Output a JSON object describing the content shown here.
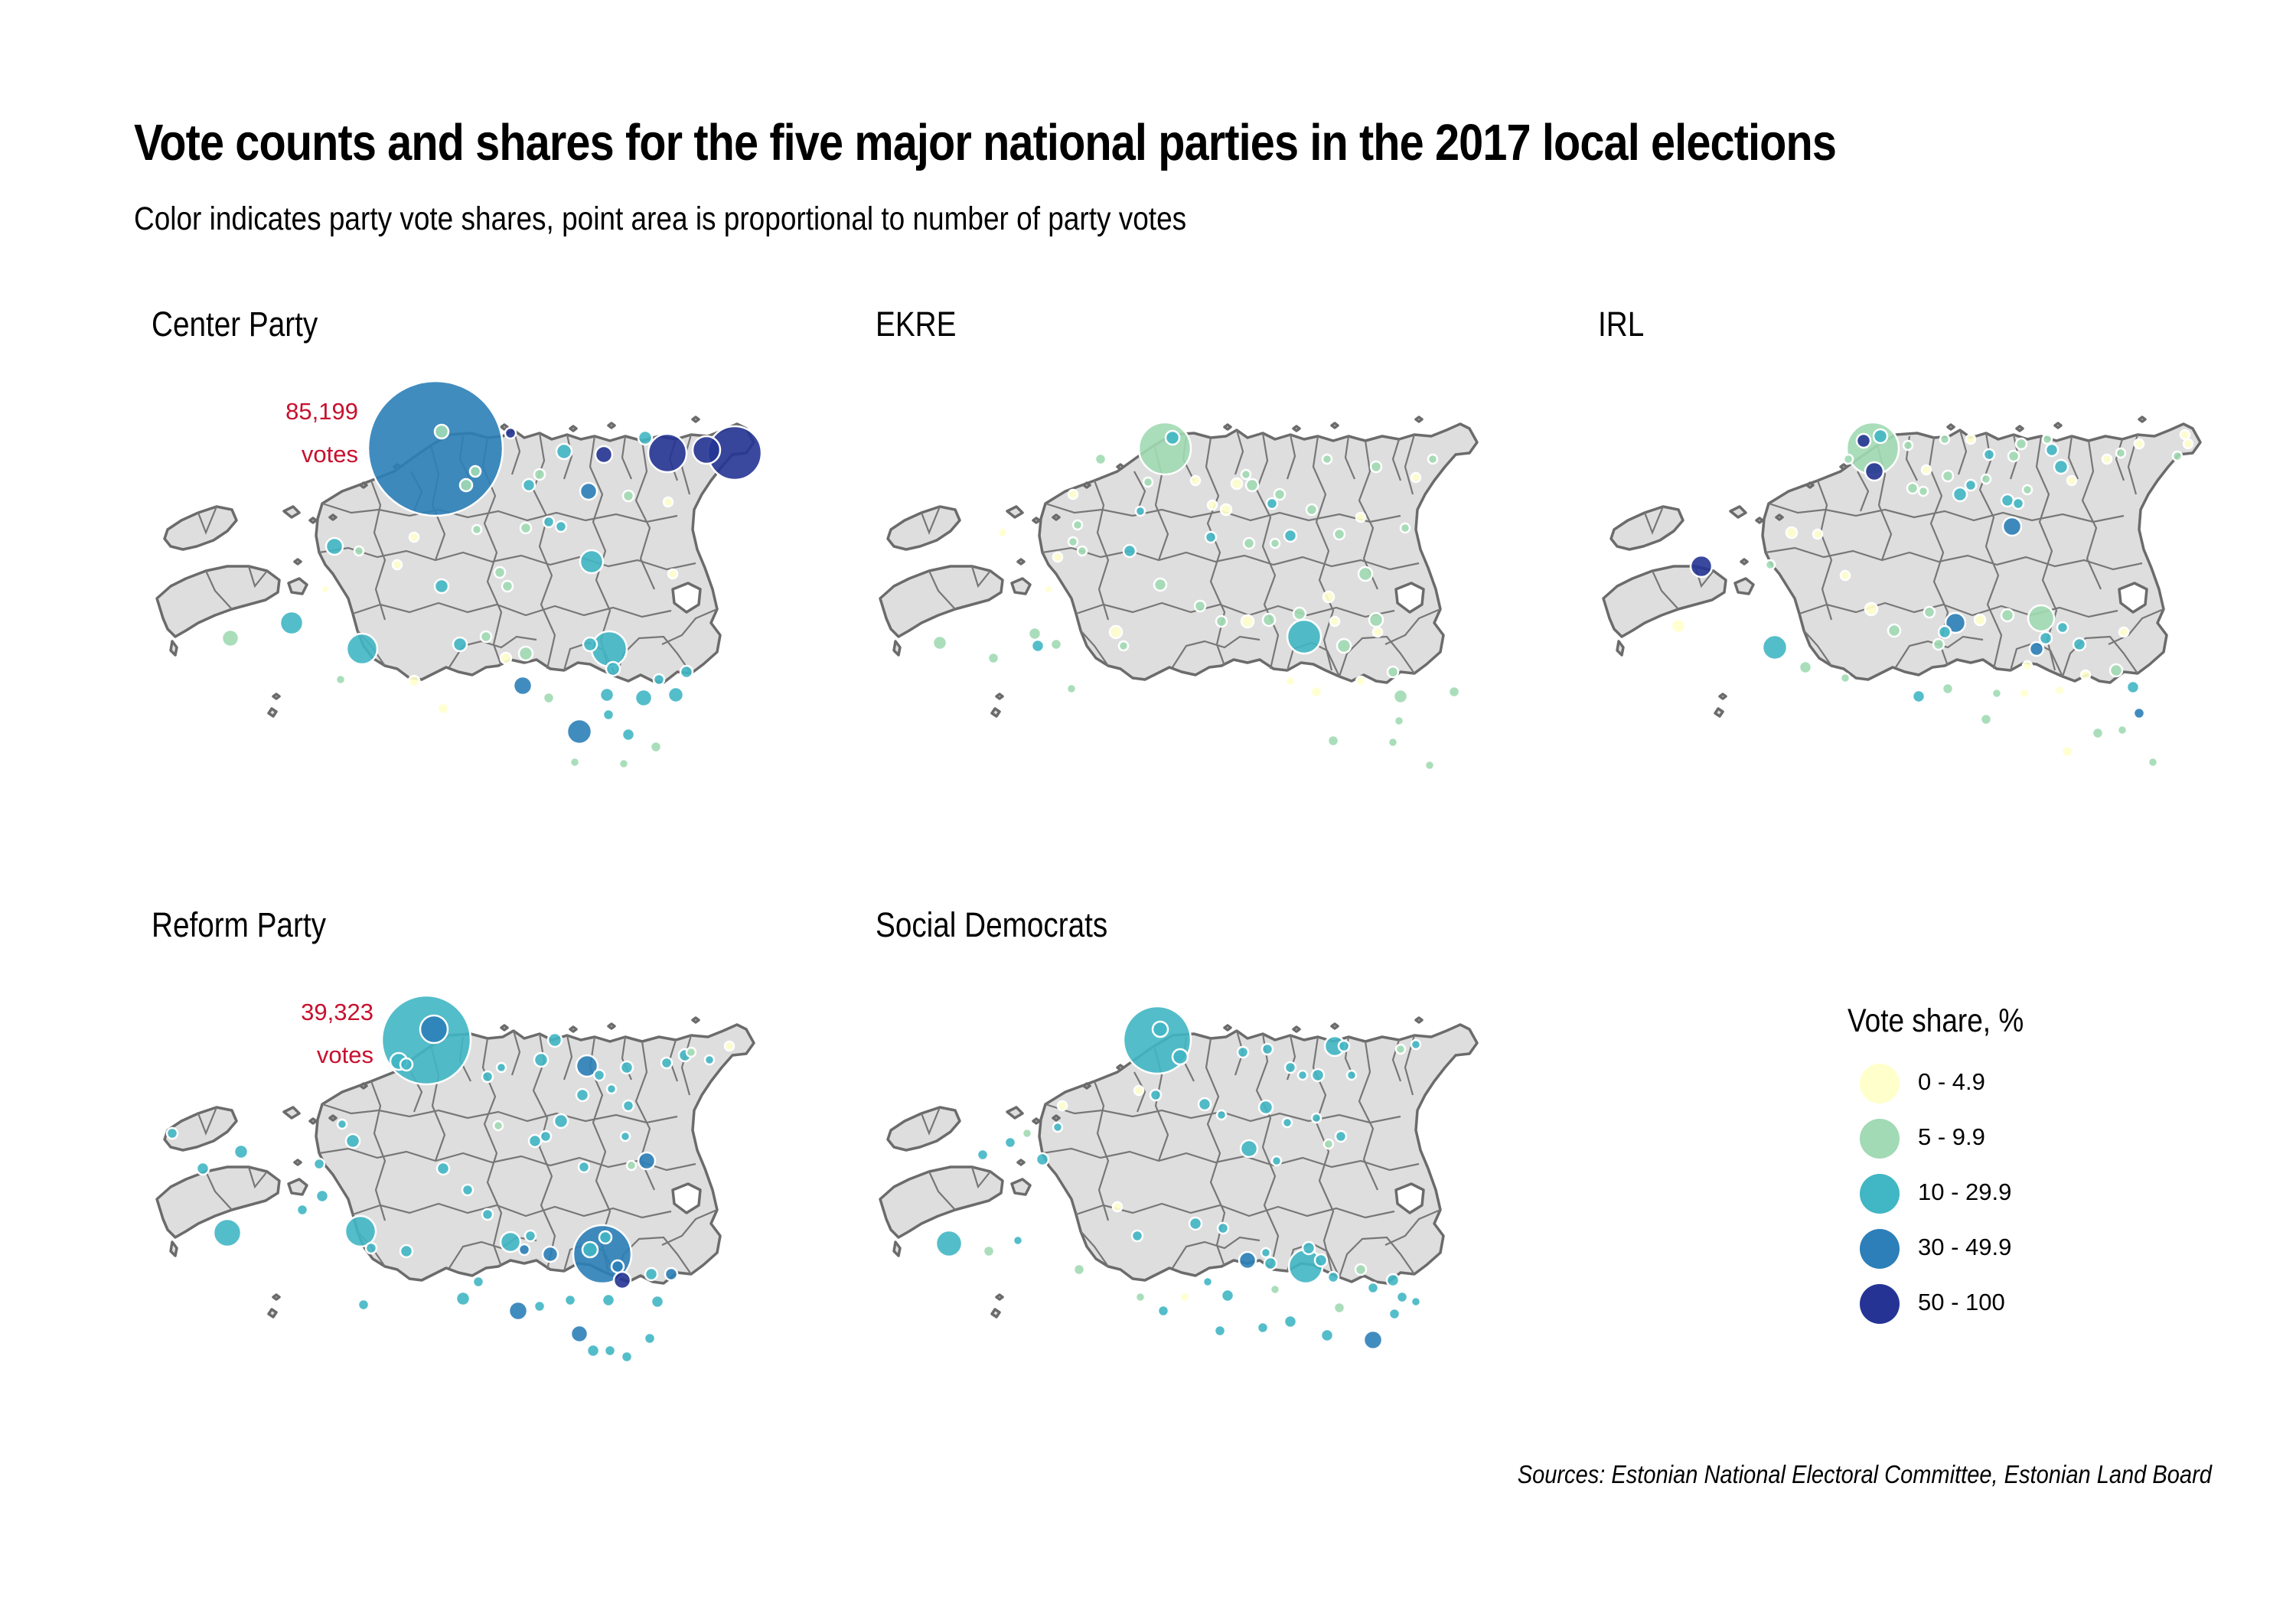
{
  "title": "Vote counts and shares for the five major national parties in the 2017 local elections",
  "subtitle": "Color indicates party vote shares, point area is proportional to number of party votes",
  "source": "Sources: Estonian National Electoral Committee, Estonian Land Board",
  "legend": {
    "title": "Vote share, %",
    "items": [
      {
        "label": "0 - 4.9",
        "color": "#ffffcc"
      },
      {
        "label": "5 - 9.9",
        "color": "#a1dab4"
      },
      {
        "label": "10 - 29.9",
        "color": "#41b6c4"
      },
      {
        "label": "30 - 49.9",
        "color": "#2c7fb8"
      },
      {
        "label": "50 - 100",
        "color": "#253494"
      }
    ]
  },
  "colors": {
    "land": "#dedede",
    "border": "#6b6b6b",
    "annotation": "#c8102e"
  },
  "panels": [
    {
      "name": "Center Party",
      "annotation": {
        "value": "85,199",
        "unit": "votes"
      }
    },
    {
      "name": "EKRE"
    },
    {
      "name": "IRL"
    },
    {
      "name": "Reform Party",
      "annotation": {
        "value": "39,323",
        "unit": "votes"
      }
    },
    {
      "name": "Social Democrats"
    }
  ]
}
